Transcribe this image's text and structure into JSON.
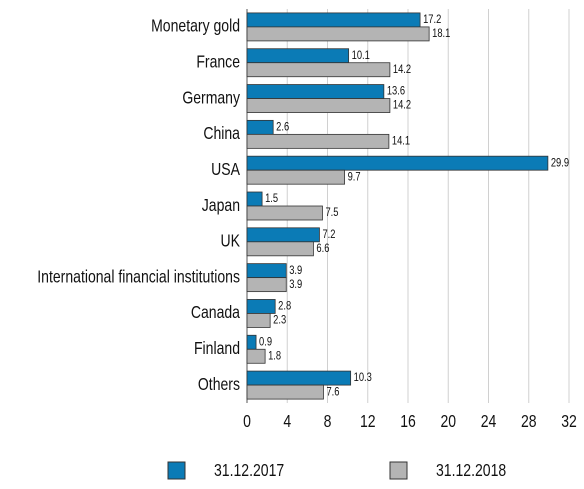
{
  "chart_data": {
    "type": "hbar",
    "categories": [
      "Monetary gold",
      "France",
      "Germany",
      "China",
      "USA",
      "Japan",
      "UK",
      "International financial institutions",
      "Canada",
      "Finland",
      "Others"
    ],
    "series": [
      {
        "name": "31.12.2017",
        "color": "#0b7bb6",
        "values": [
          17.2,
          10.1,
          13.6,
          2.6,
          29.9,
          1.5,
          7.2,
          3.9,
          2.8,
          0.9,
          10.3
        ]
      },
      {
        "name": "31.12.2018",
        "color": "#b4b4b4",
        "values": [
          18.1,
          14.2,
          14.2,
          14.1,
          9.7,
          7.5,
          6.6,
          3.9,
          2.3,
          1.8,
          7.6
        ]
      }
    ],
    "xlim": [
      0,
      32
    ],
    "xticks": [
      0,
      4,
      8,
      12,
      16,
      20,
      24,
      28,
      32
    ],
    "grid": true,
    "legend": "bottom"
  }
}
